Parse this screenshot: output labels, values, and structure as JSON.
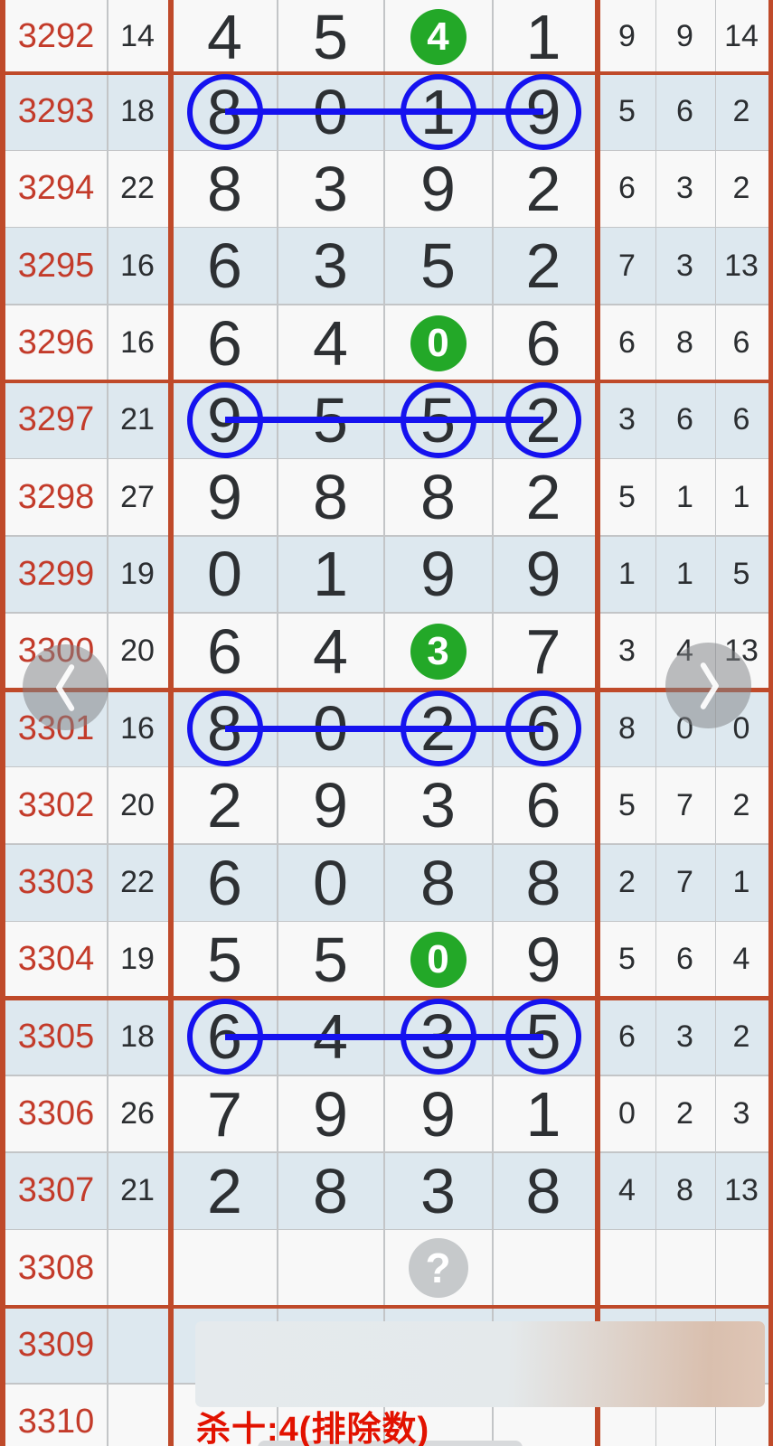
{
  "chart": {
    "description_labels": {
      "question_mark": "?",
      "kill_text": "杀十:4(排除数)"
    },
    "colors": {
      "group_border": "#bf4a2a",
      "period_text": "#c33b2a",
      "alt_row_bg": "#dde8ef",
      "plain_row_bg": "#f8f8f8",
      "green_circle": "#23a828",
      "blue_mark": "#1512ef",
      "kill_text_red": "#e21200"
    },
    "rows": [
      {
        "period": "3292",
        "sum": "14",
        "digits": [
          "4",
          "5",
          "4",
          "1"
        ],
        "green": 2,
        "stats": [
          "9",
          "9",
          "14"
        ]
      },
      {
        "period": "3293",
        "sum": "18",
        "digits": [
          "8",
          "0",
          "1",
          "9"
        ],
        "blue": [
          0,
          2,
          3
        ],
        "stats": [
          "5",
          "6",
          "2"
        ],
        "group_start": true
      },
      {
        "period": "3294",
        "sum": "22",
        "digits": [
          "8",
          "3",
          "9",
          "2"
        ],
        "stats": [
          "6",
          "3",
          "2"
        ]
      },
      {
        "period": "3295",
        "sum": "16",
        "digits": [
          "6",
          "3",
          "5",
          "2"
        ],
        "stats": [
          "7",
          "3",
          "13"
        ]
      },
      {
        "period": "3296",
        "sum": "16",
        "digits": [
          "6",
          "4",
          "0",
          "6"
        ],
        "green": 2,
        "stats": [
          "6",
          "8",
          "6"
        ]
      },
      {
        "period": "3297",
        "sum": "21",
        "digits": [
          "9",
          "5",
          "5",
          "2"
        ],
        "blue": [
          0,
          2,
          3
        ],
        "stats": [
          "3",
          "6",
          "6"
        ],
        "group_start": true
      },
      {
        "period": "3298",
        "sum": "27",
        "digits": [
          "9",
          "8",
          "8",
          "2"
        ],
        "stats": [
          "5",
          "1",
          "1"
        ]
      },
      {
        "period": "3299",
        "sum": "19",
        "digits": [
          "0",
          "1",
          "9",
          "9"
        ],
        "stats": [
          "1",
          "1",
          "5"
        ]
      },
      {
        "period": "3300",
        "sum": "20",
        "digits": [
          "6",
          "4",
          "3",
          "7"
        ],
        "green": 2,
        "stats": [
          "3",
          "4",
          "13"
        ]
      },
      {
        "period": "3301",
        "sum": "16",
        "digits": [
          "8",
          "0",
          "2",
          "6"
        ],
        "blue": [
          0,
          2,
          3
        ],
        "stats": [
          "8",
          "0",
          "0"
        ],
        "group_start": true
      },
      {
        "period": "3302",
        "sum": "20",
        "digits": [
          "2",
          "9",
          "3",
          "6"
        ],
        "stats": [
          "5",
          "7",
          "2"
        ]
      },
      {
        "period": "3303",
        "sum": "22",
        "digits": [
          "6",
          "0",
          "8",
          "8"
        ],
        "stats": [
          "2",
          "7",
          "1"
        ]
      },
      {
        "period": "3304",
        "sum": "19",
        "digits": [
          "5",
          "5",
          "0",
          "9"
        ],
        "green": 2,
        "stats": [
          "5",
          "6",
          "4"
        ]
      },
      {
        "period": "3305",
        "sum": "18",
        "digits": [
          "6",
          "4",
          "3",
          "5"
        ],
        "blue": [
          0,
          2,
          3
        ],
        "stats": [
          "6",
          "3",
          "2"
        ],
        "group_start": true
      },
      {
        "period": "3306",
        "sum": "26",
        "digits": [
          "7",
          "9",
          "9",
          "1"
        ],
        "stats": [
          "0",
          "2",
          "3"
        ]
      },
      {
        "period": "3307",
        "sum": "21",
        "digits": [
          "2",
          "8",
          "3",
          "8"
        ],
        "stats": [
          "4",
          "8",
          "13"
        ]
      },
      {
        "period": "3308",
        "sum": "",
        "digits": [
          "",
          "",
          "",
          ""
        ],
        "question": 2,
        "stats": [
          "",
          "",
          ""
        ]
      },
      {
        "period": "3309",
        "sum": "",
        "digits": [
          "",
          "",
          "",
          ""
        ],
        "stats": [
          "",
          "",
          ""
        ],
        "group_start": true,
        "redacted": true
      },
      {
        "period": "3310",
        "sum": "",
        "digits": [
          "",
          "",
          "",
          ""
        ],
        "stats": [
          "",
          "",
          ""
        ]
      }
    ]
  }
}
